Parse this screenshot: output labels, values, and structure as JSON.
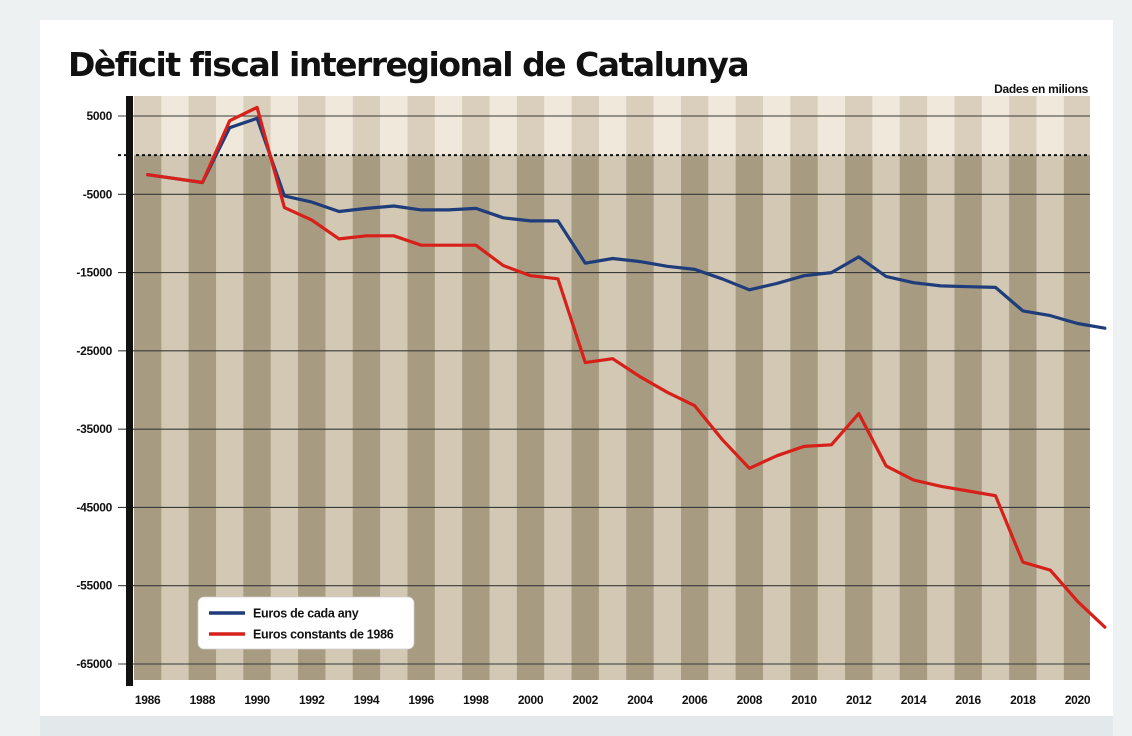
{
  "chart_data": {
    "type": "line",
    "title": "Dèficit fiscal interregional de Catalunya",
    "subtitle": "Dades en milions",
    "xlabel": "",
    "ylabel": "",
    "xlim": [
      1986,
      2021
    ],
    "ylim": [
      -66000,
      6500
    ],
    "y_ticks": [
      5000,
      -5000,
      -15000,
      -25000,
      -35000,
      -45000,
      -55000,
      -65000
    ],
    "x_ticks": [
      1986,
      1988,
      1990,
      1992,
      1994,
      1996,
      1998,
      2000,
      2002,
      2004,
      2006,
      2008,
      2010,
      2012,
      2014,
      2016,
      2018,
      2020
    ],
    "zero_line": 0,
    "grid": true,
    "legend_position": "bottom-left",
    "x": [
      1986,
      1987,
      1988,
      1989,
      1990,
      1991,
      1992,
      1993,
      1994,
      1995,
      1996,
      1997,
      1998,
      1999,
      2000,
      2001,
      2002,
      2003,
      2004,
      2005,
      2006,
      2007,
      2008,
      2009,
      2010,
      2011,
      2012,
      2013,
      2014,
      2015,
      2016,
      2017,
      2018,
      2019,
      2020,
      2021
    ],
    "series": [
      {
        "name": "Euros de cada any",
        "color": "#1f3d7a",
        "values": [
          -2500,
          -3000,
          -3500,
          3500,
          4700,
          -5200,
          -6000,
          -7200,
          -6800,
          -6500,
          -7000,
          -7000,
          -6800,
          -8000,
          -8400,
          -8400,
          -13800,
          -13200,
          -13600,
          -14200,
          -14600,
          -15800,
          -17200,
          -16400,
          -15400,
          -15000,
          -13000,
          -15500,
          -16300,
          -16700,
          -16800,
          -16900,
          -19900,
          -20500,
          -21500,
          -22100
        ]
      },
      {
        "name": "Euros constants de 1986",
        "color": "#d8201a",
        "values": [
          -2500,
          -3000,
          -3500,
          4400,
          6100,
          -6700,
          -8300,
          -10700,
          -10300,
          -10300,
          -11500,
          -11500,
          -11500,
          -14100,
          -15400,
          -15800,
          -26500,
          -26000,
          -28300,
          -30300,
          -32000,
          -36300,
          -40000,
          -38400,
          -37200,
          -37000,
          -33000,
          -39700,
          -41500,
          -42300,
          -42900,
          -43500,
          -52000,
          -53000,
          -57000,
          -60300
        ]
      }
    ]
  }
}
